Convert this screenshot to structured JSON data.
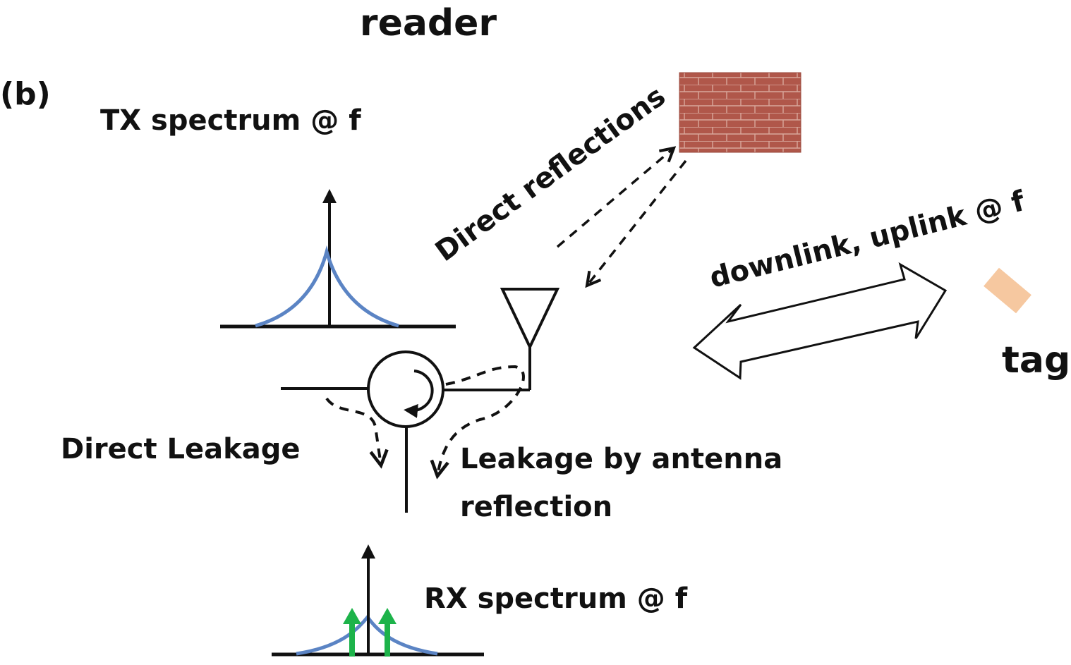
{
  "labels": {
    "title": "reader",
    "panel": "(b)",
    "tx_spectrum": "TX spectrum @ f",
    "direct_reflections": "Direct reflections",
    "link": "downlink, uplink @ f",
    "tag": "tag",
    "direct_leakage": "Direct Leakage",
    "antenna_leakage_line1": "Leakage by antenna",
    "antenna_leakage_line2": "reflection",
    "rx_spectrum": "RX spectrum @ f"
  },
  "colors": {
    "ink": "#111111",
    "spectrum": "#5b84c4",
    "sideband": "#1db34a",
    "tag": "#f6c8a0",
    "brick": "#b0574a",
    "mortar": "#d9a79b"
  },
  "icons": {
    "wall": "brick-wall-icon",
    "antenna": "antenna-icon",
    "circulator": "circulator-icon",
    "tag": "tag-icon",
    "link_arrow": "double-arrow-icon"
  }
}
